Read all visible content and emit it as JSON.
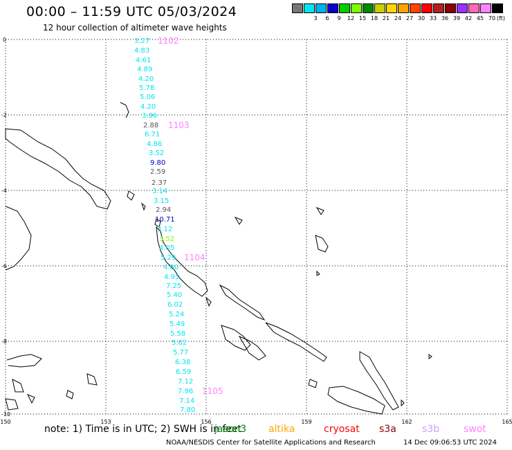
{
  "title": "00:00 – 11:59 UTC 05/03/2024",
  "subtitle": "12 hour collection of altimeter wave heights",
  "legend": {
    "unit": "(ft)",
    "swatches": [
      {
        "color": "#777777",
        "label": ""
      },
      {
        "color": "#00e5ee",
        "label": "3"
      },
      {
        "color": "#00b2ee",
        "label": "6"
      },
      {
        "color": "#0000cd",
        "label": "9"
      },
      {
        "color": "#00cd00",
        "label": "12"
      },
      {
        "color": "#7cfc00",
        "label": "15"
      },
      {
        "color": "#008b00",
        "label": "18"
      },
      {
        "color": "#cdcd00",
        "label": "21"
      },
      {
        "color": "#ffd700",
        "label": "24"
      },
      {
        "color": "#ffa500",
        "label": "27"
      },
      {
        "color": "#ff4500",
        "label": "30"
      },
      {
        "color": "#ff0000",
        "label": "33"
      },
      {
        "color": "#b22222",
        "label": "36"
      },
      {
        "color": "#8b0000",
        "label": "39"
      },
      {
        "color": "#9b30ff",
        "label": "42"
      },
      {
        "color": "#ff69b4",
        "label": "45"
      },
      {
        "color": "#ff82ff",
        "label": "70"
      },
      {
        "color": "#000000",
        "label": ""
      }
    ]
  },
  "axes": {
    "x_ticks": [
      "150",
      "153",
      "156",
      "159",
      "162",
      "165"
    ],
    "y_ticks": [
      "0",
      "-2",
      "-4",
      "-6",
      "-8",
      "-10"
    ]
  },
  "track_labels": [
    {
      "text": "1102",
      "color": "#ff82ff"
    },
    {
      "text": "1103",
      "color": "#ff82ff"
    },
    {
      "text": "1104",
      "color": "#ff82ff"
    },
    {
      "text": "1105",
      "color": "#ff82ff"
    }
  ],
  "observations": [
    {
      "value": "3.27",
      "color": "#00e5ee"
    },
    {
      "value": "4.83",
      "color": "#00e5ee"
    },
    {
      "value": "4.61",
      "color": "#00e5ee"
    },
    {
      "value": "4.89",
      "color": "#00e5ee"
    },
    {
      "value": "4.20",
      "color": "#00e5ee"
    },
    {
      "value": "5.78",
      "color": "#00e5ee"
    },
    {
      "value": "5.06",
      "color": "#00e5ee"
    },
    {
      "value": "4.20",
      "color": "#00e5ee"
    },
    {
      "value": "3.96",
      "color": "#00e5ee"
    },
    {
      "value": "2.88",
      "color": "#555555"
    },
    {
      "value": "6.71",
      "color": "#00e5ee"
    },
    {
      "value": "4.86",
      "color": "#00e5ee"
    },
    {
      "value": "3.52",
      "color": "#00e5ee"
    },
    {
      "value": "9.80",
      "color": "#0000cd"
    },
    {
      "value": "2.59",
      "color": "#555555"
    },
    {
      "value": "2.37",
      "color": "#555555"
    },
    {
      "value": "3.14",
      "color": "#00e5ee"
    },
    {
      "value": "3.15",
      "color": "#00e5ee"
    },
    {
      "value": "2.94",
      "color": "#555555"
    },
    {
      "value": "10.71",
      "color": "#0000cd"
    },
    {
      "value": "3.12",
      "color": "#00e5ee"
    },
    {
      "value": "3.52",
      "color": "#7cfc00"
    },
    {
      "value": "4.05",
      "color": "#00e5ee"
    },
    {
      "value": "5.29",
      "color": "#00e5ee"
    },
    {
      "value": "4.80",
      "color": "#00e5ee"
    },
    {
      "value": "4.95",
      "color": "#00e5ee"
    },
    {
      "value": "7.25",
      "color": "#00e5ee"
    },
    {
      "value": "5.40",
      "color": "#00e5ee"
    },
    {
      "value": "6.02",
      "color": "#00e5ee"
    },
    {
      "value": "5.24",
      "color": "#00e5ee"
    },
    {
      "value": "5.49",
      "color": "#00e5ee"
    },
    {
      "value": "5.58",
      "color": "#00e5ee"
    },
    {
      "value": "5.62",
      "color": "#00e5ee"
    },
    {
      "value": "5.77",
      "color": "#00e5ee"
    },
    {
      "value": "6.38",
      "color": "#00e5ee"
    },
    {
      "value": "6.59",
      "color": "#00e5ee"
    },
    {
      "value": "7.12",
      "color": "#00e5ee"
    },
    {
      "value": "7.96",
      "color": "#00e5ee"
    },
    {
      "value": "7.14",
      "color": "#00e5ee"
    },
    {
      "value": "7.80",
      "color": "#00e5ee"
    }
  ],
  "footer": {
    "note": "note: 1) Time is in UTC; 2) SWH is in feet",
    "satellites": [
      {
        "name": "jason3",
        "color": "#008b00"
      },
      {
        "name": "altika",
        "color": "#ffa500"
      },
      {
        "name": "cryosat",
        "color": "#ff0000"
      },
      {
        "name": "s3a",
        "color": "#8b0000"
      },
      {
        "name": "s3b",
        "color": "#c9a0ff"
      },
      {
        "name": "swot",
        "color": "#ff82ff"
      }
    ],
    "credit": "NOAA/NESDIS Center for Satellite Applications and Research",
    "timestamp": "14 Dec 09:06:53 UTC 2024"
  }
}
